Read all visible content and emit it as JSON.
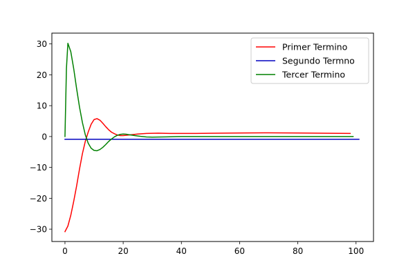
{
  "chart_data": {
    "type": "line",
    "title": "",
    "xlabel": "",
    "ylabel": "",
    "xlim": [
      -4.5,
      106
    ],
    "ylim": [
      -34,
      33.5
    ],
    "xticks": [
      0,
      20,
      40,
      60,
      80,
      100
    ],
    "yticks": [
      -30,
      -20,
      -10,
      0,
      10,
      20,
      30
    ],
    "grid": false,
    "legend": "top-right",
    "series": [
      {
        "name": "Primer Termino",
        "color": "#ff0000",
        "x": [
          0,
          1,
          2,
          3,
          4,
          5,
          6,
          7,
          8,
          9,
          10,
          11,
          12,
          13,
          14,
          15,
          16,
          17,
          18,
          19,
          20,
          22,
          25,
          28,
          32,
          36,
          40,
          45,
          50,
          60,
          70,
          80,
          90,
          98
        ],
        "y": [
          -30.8,
          -29.0,
          -25.5,
          -21.0,
          -16.0,
          -10.5,
          -5.5,
          -1.5,
          1.5,
          4.0,
          5.5,
          5.8,
          5.3,
          4.3,
          3.2,
          2.2,
          1.4,
          0.9,
          0.5,
          0.3,
          0.3,
          0.5,
          0.8,
          1.0,
          1.1,
          1.0,
          1.0,
          1.0,
          1.05,
          1.15,
          1.2,
          1.15,
          1.05,
          1.0
        ]
      },
      {
        "name": "Segundo Termno",
        "color": "#0000bf",
        "x": [
          0,
          101
        ],
        "y": [
          -0.9,
          -0.9
        ]
      },
      {
        "name": "Tercer Termino",
        "color": "#008000",
        "x": [
          0,
          0.5,
          1,
          2,
          3,
          4,
          5,
          6,
          7,
          8,
          9,
          10,
          11,
          12,
          13,
          14,
          15,
          16,
          17,
          18,
          19,
          20,
          21,
          22,
          24,
          26,
          28,
          30,
          35,
          40,
          50,
          60,
          70,
          80,
          90,
          99
        ],
        "y": [
          0.0,
          22.0,
          30.2,
          27.5,
          22.0,
          15.5,
          9.5,
          4.5,
          0.5,
          -2.2,
          -3.8,
          -4.5,
          -4.6,
          -4.2,
          -3.5,
          -2.6,
          -1.6,
          -0.8,
          -0.1,
          0.4,
          0.7,
          0.8,
          0.75,
          0.6,
          0.3,
          0.05,
          -0.15,
          -0.2,
          -0.1,
          0.0,
          0.0,
          0.0,
          0.0,
          0.0,
          0.0,
          0.0
        ]
      }
    ]
  }
}
